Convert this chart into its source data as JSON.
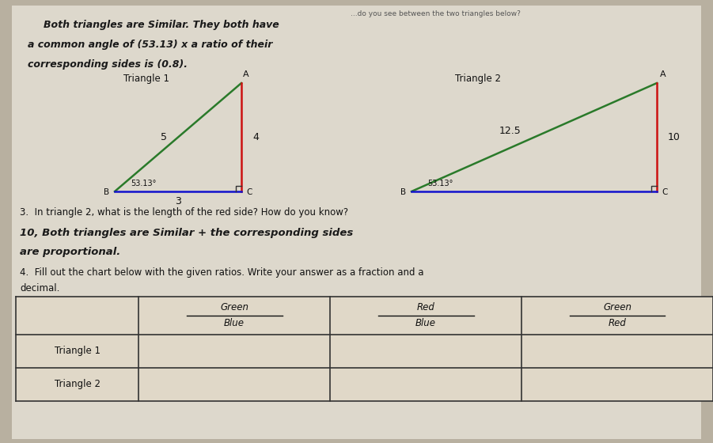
{
  "bg_color": "#b8b0a0",
  "paper_color": "#ddd8cc",
  "top_text": "...do you see between the two triangles below?",
  "hw_line1": "Both triangles are Similar. They both have",
  "hw_line2": "a common angle of (53.13) x a ratio of their",
  "hw_line3": "corresponding sides is (0.8).",
  "tri1_label": "Triangle 1",
  "tri2_label": "Triangle 2",
  "tri1": {
    "A": [
      3.05,
      4.55
    ],
    "B": [
      1.45,
      3.18
    ],
    "C": [
      3.05,
      3.18
    ],
    "side_AB": "5",
    "side_AC": "4",
    "side_BC": "3",
    "angle_text": "53.13°"
  },
  "tri2": {
    "A": [
      8.3,
      4.55
    ],
    "B": [
      5.2,
      3.18
    ],
    "C": [
      8.3,
      3.18
    ],
    "side_AB": "12.5",
    "side_AC": "10",
    "side_BC": "",
    "angle_text": "53.13°"
  },
  "q3_text": "3.  In triangle 2, what is the length of the red side? How do you know?",
  "ans3_line1": "10, Both triangles are Similar + the corresponding sides",
  "ans3_line2": "are proportional.",
  "q4_text": "4.  Fill out the chart below with the given ratios. Write your answer as a fraction and a",
  "q4_text2": "decimal.",
  "table_col_headers": [
    [
      "Green",
      "Blue"
    ],
    [
      "Red",
      "Blue"
    ],
    [
      "Green",
      "Red"
    ]
  ],
  "table_row_labels": [
    "Triangle 1",
    "Triangle 2"
  ],
  "col_colors_top": [
    "#111111",
    "#111111",
    "#111111"
  ],
  "col_colors_bot": [
    "#111111",
    "#111111",
    "#111111"
  ]
}
